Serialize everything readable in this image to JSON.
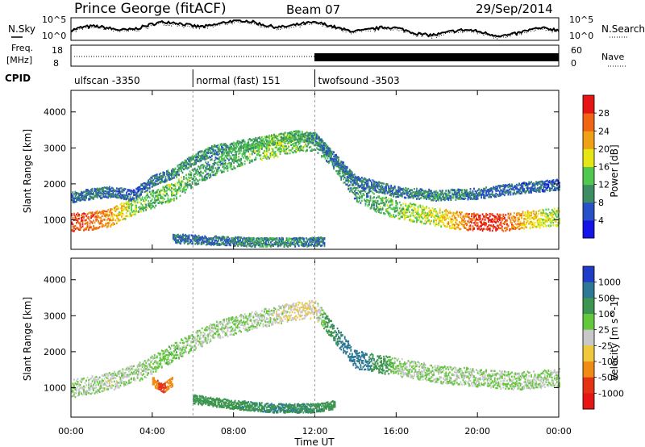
{
  "header": {
    "station": "Prince George (fitACF)",
    "beam": "Beam 07",
    "date": "29/Sep/2014"
  },
  "side_labels": {
    "nsky": "N.Sky",
    "nsearch": "N.Search",
    "freq": "Freq.",
    "freq_unit": "[MHz]",
    "nave": "Nave",
    "cpid": "CPID"
  },
  "noise_panel": {
    "left_ticks": [
      "10^5",
      "10^0"
    ],
    "right_ticks": [
      "10^5",
      "10^0"
    ]
  },
  "freq_panel": {
    "left_ticks": [
      "18",
      "8"
    ],
    "right_ticks": [
      "60",
      "0"
    ]
  },
  "cpid_segments": [
    {
      "label": "ulfscan -3350",
      "start_h": 0,
      "end_h": 6
    },
    {
      "label": "normal (fast) 151",
      "start_h": 6,
      "end_h": 12
    },
    {
      "label": "twofsound -3503",
      "start_h": 12,
      "end_h": 24
    }
  ],
  "x_axis": {
    "title": "Time UT",
    "ticks": [
      "00:00",
      "04:00",
      "08:00",
      "12:00",
      "16:00",
      "20:00",
      "00:00"
    ],
    "tick_hours": [
      0,
      4,
      8,
      12,
      16,
      20,
      24
    ]
  },
  "power_panel": {
    "ylabel": "Slant Range [km]",
    "yticks": [
      1000,
      2000,
      3000,
      4000
    ],
    "colorbar_label": "Power [dB]",
    "colorbar_ticks": [
      "4",
      "8",
      "12",
      "16",
      "20",
      "24",
      "28"
    ],
    "colors": [
      "#1414e6",
      "#2850c8",
      "#3c8c64",
      "#50c850",
      "#e6e614",
      "#f0a014",
      "#f06414",
      "#e61414"
    ]
  },
  "velocity_panel": {
    "ylabel": "Slant Range [km]",
    "yticks": [
      1000,
      2000,
      3000,
      4000
    ],
    "colorbar_label": "Velocity [m s^-1]",
    "colorbar_ticks": [
      "1000",
      "500",
      "100",
      "25",
      "-25",
      "-100",
      "-500",
      "-1000"
    ],
    "colors": [
      "#1e3cc8",
      "#2d7896",
      "#3c9650",
      "#64c83c",
      "#c8c8c8",
      "#f0c83c",
      "#f08c14",
      "#e63214",
      "#e61414"
    ]
  },
  "chart_data": {
    "type": "heatmap",
    "x_range_hours": [
      0,
      24
    ],
    "y_range_km": [
      180,
      4600
    ],
    "power_bands": [
      {
        "name": "main",
        "points": [
          [
            0.0,
            950,
            28
          ],
          [
            1.0,
            1000,
            26
          ],
          [
            2.0,
            1100,
            22
          ],
          [
            3.0,
            1400,
            16
          ],
          [
            4.0,
            1600,
            12
          ],
          [
            5.0,
            1800,
            14
          ],
          [
            6.0,
            2200,
            12
          ],
          [
            7.0,
            2500,
            10
          ],
          [
            8.0,
            2700,
            12
          ],
          [
            9.0,
            2900,
            14
          ],
          [
            10.0,
            3000,
            16
          ],
          [
            11.0,
            3150,
            14
          ],
          [
            12.0,
            3200,
            12
          ],
          [
            13.0,
            2600,
            10
          ],
          [
            14.0,
            1800,
            10
          ],
          [
            15.0,
            1500,
            12
          ],
          [
            16.0,
            1300,
            14
          ],
          [
            17.0,
            1200,
            16
          ],
          [
            18.0,
            1100,
            18
          ],
          [
            19.0,
            1000,
            22
          ],
          [
            20.0,
            950,
            28
          ],
          [
            21.0,
            950,
            30
          ],
          [
            22.0,
            1000,
            22
          ],
          [
            23.0,
            1050,
            18
          ],
          [
            24.0,
            1100,
            16
          ]
        ]
      },
      {
        "name": "upper",
        "points": [
          [
            0.0,
            1650,
            8
          ],
          [
            1.0,
            1750,
            8
          ],
          [
            2.0,
            1800,
            8
          ],
          [
            3.0,
            1700,
            6
          ],
          [
            4.0,
            2100,
            8
          ],
          [
            5.0,
            2300,
            10
          ],
          [
            6.0,
            2700,
            10
          ],
          [
            7.0,
            2950,
            10
          ],
          [
            8.0,
            3050,
            12
          ],
          [
            9.0,
            3150,
            12
          ],
          [
            10.0,
            3250,
            14
          ],
          [
            11.0,
            3350,
            12
          ],
          [
            12.0,
            3300,
            10
          ],
          [
            13.0,
            2700,
            8
          ],
          [
            14.0,
            2100,
            8
          ],
          [
            16.0,
            1800,
            8
          ],
          [
            18.0,
            1700,
            10
          ],
          [
            20.0,
            1750,
            8
          ],
          [
            22.0,
            1900,
            8
          ],
          [
            24.0,
            2000,
            6
          ]
        ]
      },
      {
        "name": "ground",
        "points": [
          [
            5.0,
            500,
            8
          ],
          [
            7.0,
            450,
            8
          ],
          [
            9.0,
            400,
            10
          ],
          [
            11.0,
            400,
            10
          ],
          [
            12.5,
            420,
            8
          ]
        ]
      }
    ],
    "velocity_bands": [
      {
        "name": "main",
        "points": [
          [
            0.0,
            1000,
            0
          ],
          [
            2.0,
            1200,
            -10
          ],
          [
            3.5,
            1500,
            0
          ],
          [
            5.0,
            2000,
            10
          ],
          [
            7.0,
            2600,
            0
          ],
          [
            9.0,
            2900,
            0
          ],
          [
            11.0,
            3150,
            -20
          ],
          [
            12.0,
            3200,
            -30
          ],
          [
            13.0,
            2500,
            100
          ],
          [
            14.0,
            1800,
            150
          ],
          [
            16.0,
            1600,
            0
          ],
          [
            18.0,
            1400,
            0
          ],
          [
            20.0,
            1300,
            0
          ],
          [
            22.0,
            1200,
            0
          ],
          [
            24.0,
            1300,
            0
          ]
        ]
      },
      {
        "name": "irregular-orange",
        "points": [
          [
            4.0,
            1200,
            -400
          ],
          [
            4.5,
            1000,
            -600
          ],
          [
            5.0,
            1200,
            -300
          ]
        ]
      },
      {
        "name": "ground-green",
        "points": [
          [
            6.0,
            700,
            60
          ],
          [
            8.0,
            550,
            80
          ],
          [
            10.0,
            450,
            100
          ],
          [
            12.0,
            450,
            90
          ],
          [
            13.0,
            550,
            70
          ]
        ]
      }
    ]
  }
}
